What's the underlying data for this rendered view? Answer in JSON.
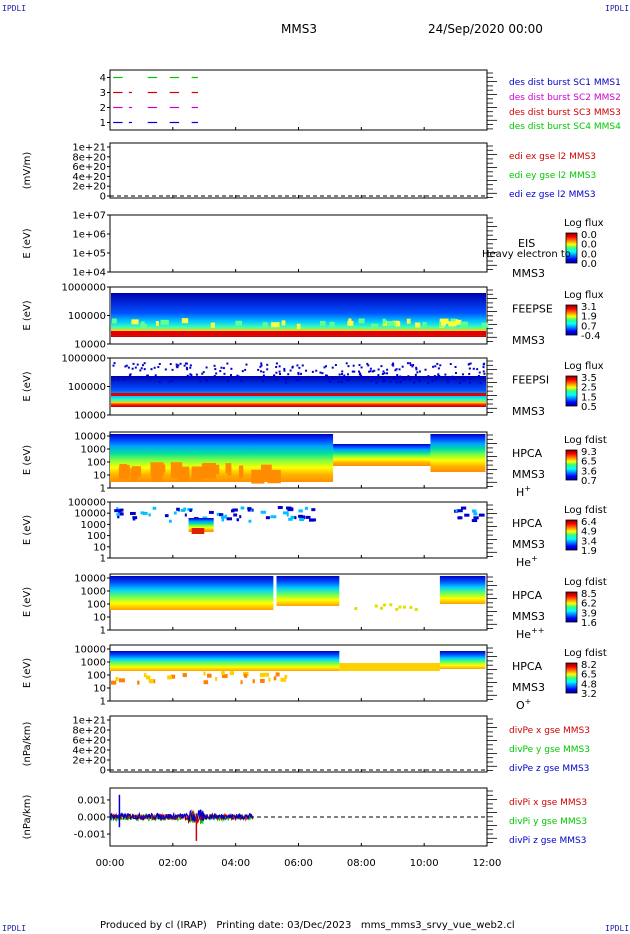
{
  "header": {
    "corner_tl": "IPDLI",
    "corner_tr": "IPDLI",
    "corner_bl": "IPDLI",
    "corner_br": "IPDLI",
    "spacecraft": "MMS3",
    "date": "24/Sep/2020 00:00"
  },
  "footer": {
    "produced": "Produced by cl (IRAP)",
    "printing": "Printing date: 03/Dec/2023",
    "file": "mms_mms3_srvy_vue_web2.cl"
  },
  "colors": {
    "mms1": "#0000c8",
    "mms2": "#d000d0",
    "mms3": "#d00000",
    "mms4": "#00c800"
  },
  "chart_data": [
    {
      "type": "scatter",
      "id": "burst",
      "ylabel": "",
      "yticks": [
        "1",
        "2",
        "3",
        "4"
      ],
      "ylim": [
        0.5,
        4.5
      ],
      "legend": [
        "des dist burst SC1 MMS1",
        "des dist burst SC2 MMS2",
        "des dist burst SC3 MMS3",
        "des dist burst SC4 MMS4"
      ],
      "series": [
        {
          "level": 4,
          "segments": [
            [
              0.1,
              0.4
            ],
            [
              1.2,
              1.5
            ],
            [
              1.9,
              2.2
            ],
            [
              2.6,
              2.8
            ]
          ]
        },
        {
          "level": 3,
          "segments": [
            [
              0.1,
              0.4
            ],
            [
              0.6,
              0.7
            ],
            [
              1.2,
              1.5
            ],
            [
              1.9,
              2.2
            ],
            [
              2.6,
              2.8
            ]
          ]
        },
        {
          "level": 2,
          "segments": [
            [
              0.1,
              0.4
            ],
            [
              0.6,
              0.7
            ],
            [
              1.2,
              1.5
            ],
            [
              1.9,
              2.2
            ],
            [
              2.6,
              2.8
            ]
          ]
        },
        {
          "level": 1,
          "segments": [
            [
              0.1,
              0.4
            ],
            [
              0.6,
              0.7
            ],
            [
              1.2,
              1.5
            ],
            [
              1.9,
              2.2
            ],
            [
              2.6,
              2.8
            ]
          ]
        }
      ]
    },
    {
      "type": "line",
      "id": "edi",
      "ylabel": "(mV/m)",
      "yticks": [
        "0",
        "2e+20",
        "4e+20",
        "6e+20",
        "8e+20",
        "1e+21"
      ],
      "ylim": [
        0,
        1e+21
      ],
      "legend": [
        "edi ex gse l2 MMS3",
        "edi ey gse l2 MMS3",
        "edi ez gse l2 MMS3"
      ]
    },
    {
      "type": "heatmap",
      "id": "eis",
      "ylabel": "E (eV)",
      "yticks": [
        "1e+04",
        "1e+05",
        "1e+06",
        "1e+07"
      ],
      "instrument": "EIS",
      "spacecraft": "MMS3",
      "overlay": "Heavy electron to",
      "cbar_title": "Log flux",
      "cbar_ticks": [
        "0.0",
        "0.0",
        "0.0",
        "0.0"
      ]
    },
    {
      "type": "heatmap",
      "id": "feepse",
      "ylabel": "E (eV)",
      "yticks": [
        "10000",
        "100000",
        "1000000"
      ],
      "instrument": "FEEPSE",
      "spacecraft": "MMS3",
      "cbar_title": "Log flux",
      "cbar_ticks": [
        "3.1",
        "1.9",
        "0.7",
        "-0.4"
      ]
    },
    {
      "type": "heatmap",
      "id": "feepsi",
      "ylabel": "E (eV)",
      "yticks": [
        "10000",
        "100000",
        "1000000"
      ],
      "instrument": "FEEPSI",
      "spacecraft": "MMS3",
      "cbar_title": "Log flux",
      "cbar_ticks": [
        "3.5",
        "2.5",
        "1.5",
        "0.5"
      ]
    },
    {
      "type": "heatmap",
      "id": "hpca_h",
      "ylabel": "E (eV)",
      "yticks": [
        "1",
        "10",
        "100",
        "1000",
        "10000"
      ],
      "instrument": "HPCA",
      "spacecraft": "MMS3",
      "species": "H",
      "species_sup": "+",
      "cbar_title": "Log fdist",
      "cbar_ticks": [
        "9.3",
        "6.5",
        "3.6",
        "0.7"
      ]
    },
    {
      "type": "heatmap",
      "id": "hpca_he",
      "ylabel": "E (eV)",
      "yticks": [
        "1",
        "10",
        "100",
        "1000",
        "10000",
        "100000"
      ],
      "instrument": "HPCA",
      "spacecraft": "MMS3",
      "species": "He",
      "species_sup": "+",
      "cbar_title": "Log fdist",
      "cbar_ticks": [
        "6.4",
        "4.9",
        "3.4",
        "1.9"
      ]
    },
    {
      "type": "heatmap",
      "id": "hpca_hepp",
      "ylabel": "E (eV)",
      "yticks": [
        "1",
        "10",
        "100",
        "1000",
        "10000"
      ],
      "instrument": "HPCA",
      "spacecraft": "MMS3",
      "species": "He",
      "species_sup": "++",
      "cbar_title": "Log fdist",
      "cbar_ticks": [
        "8.5",
        "6.2",
        "3.9",
        "1.6"
      ]
    },
    {
      "type": "heatmap",
      "id": "hpca_o",
      "ylabel": "E (eV)",
      "yticks": [
        "1",
        "10",
        "100",
        "1000",
        "10000"
      ],
      "instrument": "HPCA",
      "spacecraft": "MMS3",
      "species": "O",
      "species_sup": "+",
      "cbar_title": "Log fdist",
      "cbar_ticks": [
        "8.2",
        "6.5",
        "4.8",
        "3.2"
      ]
    },
    {
      "type": "line",
      "id": "divpe",
      "ylabel": "(nPa/km)",
      "yticks": [
        "0",
        "2e+20",
        "4e+20",
        "6e+20",
        "8e+20",
        "1e+21"
      ],
      "ylim": [
        0,
        1e+21
      ],
      "legend": [
        "divPe x gse MMS3",
        "divPe y gse MMS3",
        "divPe z gse MMS3"
      ]
    },
    {
      "type": "line",
      "id": "divpi",
      "ylabel": "(nPa/km)",
      "yticks": [
        "-0.001",
        "0.000",
        "0.001"
      ],
      "ylim": [
        -0.0017,
        0.0017
      ],
      "legend": [
        "divPi x gse MMS3",
        "divPi y gse MMS3",
        "divPi z gse MMS3"
      ]
    }
  ],
  "xaxis": {
    "ticks": [
      "00:00",
      "02:00",
      "04:00",
      "06:00",
      "08:00",
      "10:00",
      "12:00"
    ],
    "xlim": [
      0,
      12
    ]
  }
}
